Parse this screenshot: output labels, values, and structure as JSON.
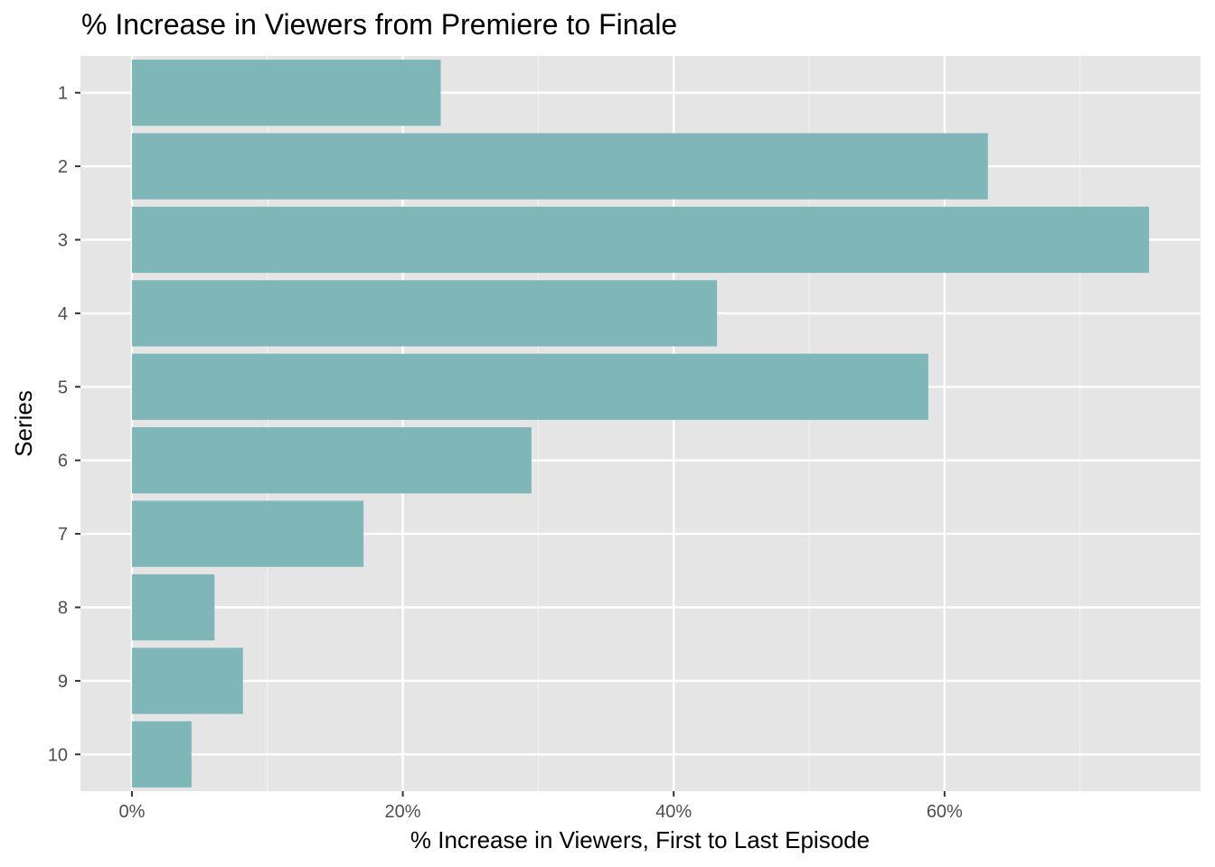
{
  "chart_data": {
    "type": "bar",
    "orientation": "horizontal",
    "title": "% Increase in Viewers from Premiere to Finale",
    "xlabel": "% Increase in Viewers, First to Last Episode",
    "ylabel": "Series",
    "categories": [
      "1",
      "2",
      "3",
      "4",
      "5",
      "6",
      "7",
      "8",
      "9",
      "10"
    ],
    "values": [
      22.8,
      63.2,
      75.1,
      43.2,
      58.8,
      29.5,
      17.1,
      6.1,
      8.2,
      4.4
    ],
    "xlim": [
      -3.8,
      78.9
    ],
    "x_ticks": [
      0,
      20,
      40,
      60
    ],
    "x_tick_labels": [
      "0%",
      "20%",
      "40%",
      "60%"
    ],
    "grid": true,
    "colors": {
      "bar": "#7fb7b8",
      "panel": "#e5e5e5",
      "grid_major": "#ffffff",
      "grid_minor": "#f2f2f2",
      "tick": "#333333"
    }
  }
}
